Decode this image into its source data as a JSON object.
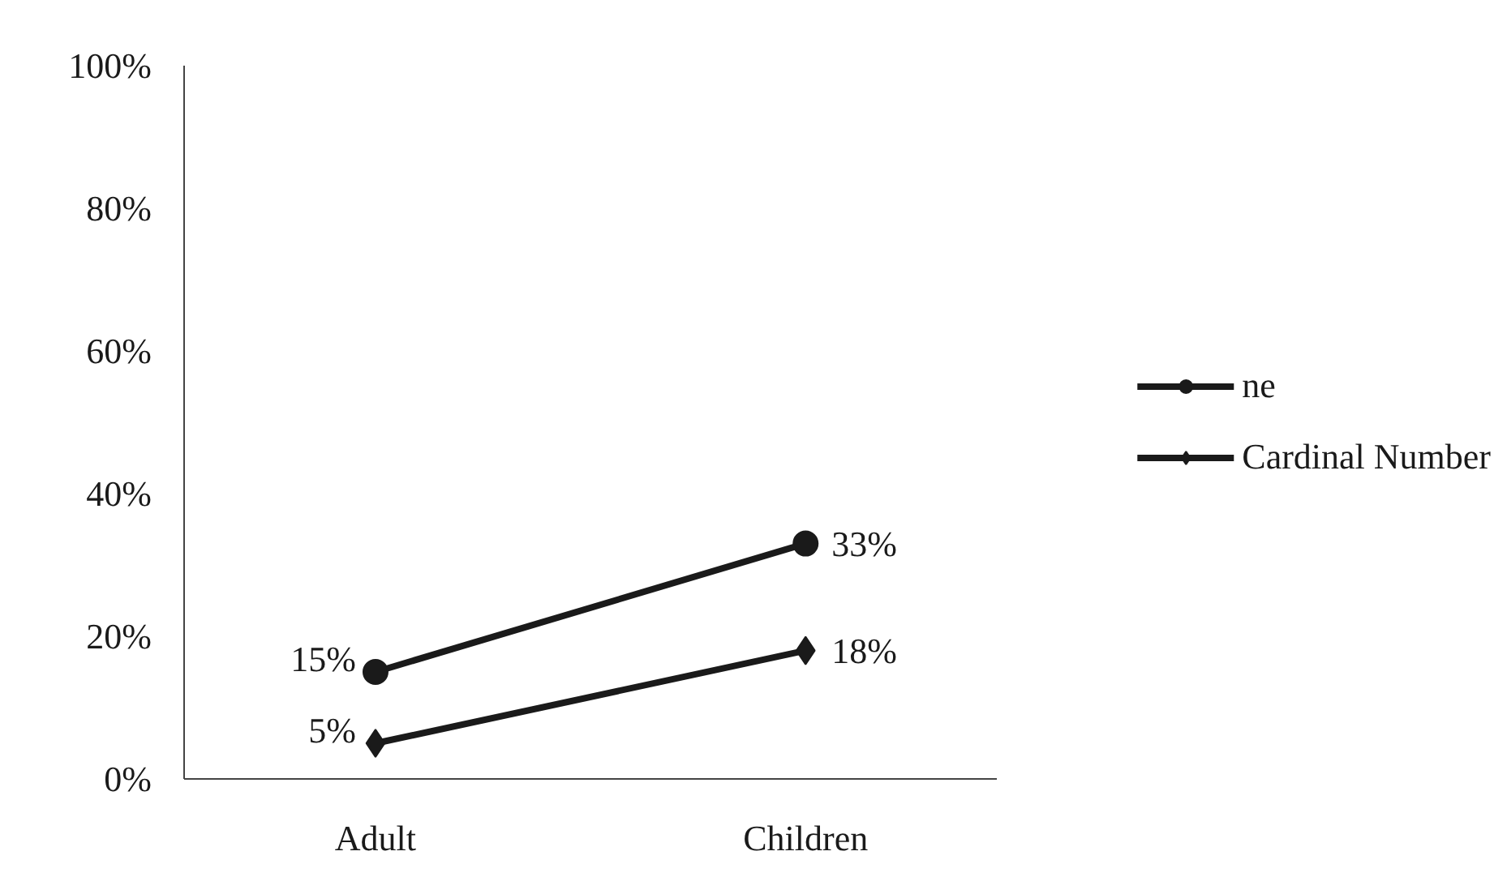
{
  "chart_data": {
    "type": "line",
    "categories": [
      "Adult",
      "Children"
    ],
    "series": [
      {
        "name": "ne",
        "color": "#1a1a1a",
        "marker": "circle",
        "values": [
          15,
          33
        ],
        "value_labels": [
          "15%",
          "33%"
        ]
      },
      {
        "name": "Cardinal Number",
        "color": "#1a1a1a",
        "marker": "diamond",
        "values": [
          5,
          18
        ],
        "value_labels": [
          "5%",
          "18%"
        ]
      }
    ],
    "ylim": [
      0,
      100
    ],
    "yticks": [
      {
        "value": 0,
        "label": "0%"
      },
      {
        "value": 20,
        "label": "20%"
      },
      {
        "value": 40,
        "label": "40%"
      },
      {
        "value": 60,
        "label": "60%"
      },
      {
        "value": 80,
        "label": "80%"
      },
      {
        "value": 100,
        "label": "100%"
      }
    ],
    "grid": false,
    "legend": "right",
    "line_style": "solid"
  }
}
